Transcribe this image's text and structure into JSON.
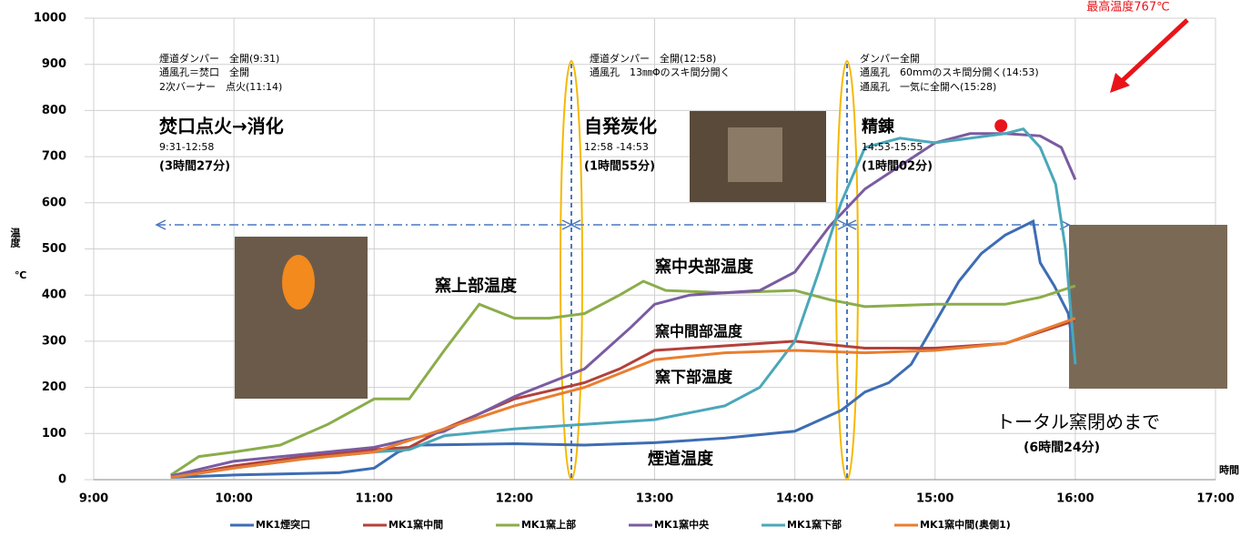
{
  "chart_data": {
    "type": "line",
    "y_label": "温度",
    "y_unit": "℃",
    "x_label": "時間",
    "xlim": [
      9,
      17
    ],
    "ylim": [
      0,
      1000
    ],
    "xticks": [
      {
        "value": 9,
        "label": "9:00"
      },
      {
        "value": 10,
        "label": "10:00"
      },
      {
        "value": 11,
        "label": "11:00"
      },
      {
        "value": 12,
        "label": "12:00"
      },
      {
        "value": 13,
        "label": "13:00"
      },
      {
        "value": 14,
        "label": "14:00"
      },
      {
        "value": 15,
        "label": "15:00"
      },
      {
        "value": 16,
        "label": "16:00"
      },
      {
        "value": 17,
        "label": "17:00"
      }
    ],
    "yticks": [
      0,
      100,
      200,
      300,
      400,
      500,
      600,
      700,
      800,
      900,
      1000
    ],
    "grid": true,
    "series": [
      {
        "name": "MK1煙突口",
        "color": "#3d6db3",
        "x": [
          9.55,
          10.0,
          10.75,
          11.0,
          11.17,
          11.33,
          12.0,
          12.5,
          13.0,
          13.5,
          14.0,
          14.33,
          14.5,
          14.67,
          14.83,
          15.0,
          15.17,
          15.33,
          15.5,
          15.7,
          15.75,
          15.85,
          15.95,
          16.0
        ],
        "values": [
          5,
          10,
          15,
          25,
          60,
          75,
          78,
          75,
          80,
          90,
          105,
          150,
          190,
          210,
          250,
          340,
          430,
          490,
          530,
          560,
          470,
          420,
          360,
          250
        ]
      },
      {
        "name": "MK1窯中間",
        "color": "#b3413b",
        "x": [
          9.55,
          10.0,
          10.5,
          11.0,
          11.25,
          11.5,
          12.0,
          12.5,
          12.75,
          13.0,
          13.5,
          14.0,
          14.5,
          15.0,
          15.5,
          16.0
        ],
        "values": [
          5,
          30,
          50,
          65,
          70,
          110,
          175,
          210,
          240,
          280,
          290,
          300,
          285,
          285,
          295,
          345
        ]
      },
      {
        "name": "MK1窯上部",
        "color": "#8bad4b",
        "x": [
          9.55,
          9.75,
          10.0,
          10.33,
          10.67,
          11.0,
          11.25,
          11.5,
          11.75,
          12.0,
          12.25,
          12.5,
          12.75,
          12.92,
          13.08,
          13.5,
          14.0,
          14.25,
          14.5,
          15.0,
          15.5,
          15.75,
          16.0
        ],
        "values": [
          10,
          50,
          60,
          75,
          120,
          175,
          175,
          280,
          380,
          350,
          350,
          360,
          400,
          430,
          410,
          405,
          410,
          390,
          375,
          380,
          380,
          395,
          420
        ]
      },
      {
        "name": "MK1窯中央",
        "color": "#7a5ba1",
        "x": [
          9.55,
          10.0,
          10.5,
          11.0,
          11.5,
          12.0,
          12.5,
          12.83,
          13.0,
          13.25,
          13.75,
          14.0,
          14.25,
          14.5,
          14.75,
          15.0,
          15.25,
          15.5,
          15.75,
          15.9,
          16.0
        ],
        "values": [
          8,
          40,
          55,
          70,
          105,
          180,
          240,
          330,
          380,
          400,
          410,
          450,
          550,
          630,
          680,
          730,
          750,
          750,
          745,
          720,
          650
        ]
      },
      {
        "name": "MK1窯下部",
        "color": "#4ba7b9",
        "x": [
          9.55,
          10.0,
          10.5,
          11.0,
          11.25,
          11.5,
          12.0,
          12.5,
          13.0,
          13.5,
          13.75,
          14.0,
          14.17,
          14.33,
          14.5,
          14.75,
          15.0,
          15.5,
          15.63,
          15.75,
          15.86,
          15.93,
          16.0
        ],
        "values": [
          5,
          25,
          45,
          60,
          65,
          95,
          110,
          120,
          130,
          160,
          200,
          300,
          450,
          600,
          720,
          740,
          730,
          750,
          760,
          720,
          640,
          500,
          250
        ]
      },
      {
        "name": "MK1窯中間(奥側1)",
        "color": "#e97e30",
        "x": [
          9.55,
          10.0,
          10.5,
          11.0,
          11.5,
          12.0,
          12.5,
          12.75,
          13.0,
          13.5,
          14.0,
          14.5,
          15.0,
          15.5,
          16.0
        ],
        "values": [
          5,
          25,
          45,
          60,
          110,
          160,
          200,
          230,
          260,
          275,
          280,
          275,
          280,
          295,
          350
        ]
      }
    ],
    "peak": {
      "x": 15.47,
      "value": 767,
      "label": "最高温度767℃"
    },
    "annotations": [
      "煙道ダンパー　全開(9:31)",
      "通風孔＝焚口　全開",
      "2次バーナー　点火(11:14)",
      "煙道ダンパー　全開(12:58)",
      "通風孔　13㎜Φのスキ間分開く",
      "ダンパー全開",
      "通風孔　60mmのスキ間分開く(14:53)",
      "通風孔　一気に全開へ(15:28)",
      "焚口点火→消化",
      "9:31-12:58",
      "(3時間27分)",
      "自発炭化",
      "12:58 -14:53",
      "(1時間55分)",
      "精錬",
      "14:53-15:55",
      "(1時間02分)",
      "窯上部温度",
      "窯中央部温度",
      "窯中間部温度",
      "窯下部温度",
      "煙道温度",
      "トータル窯閉めまで",
      "(6時間24分)"
    ]
  }
}
